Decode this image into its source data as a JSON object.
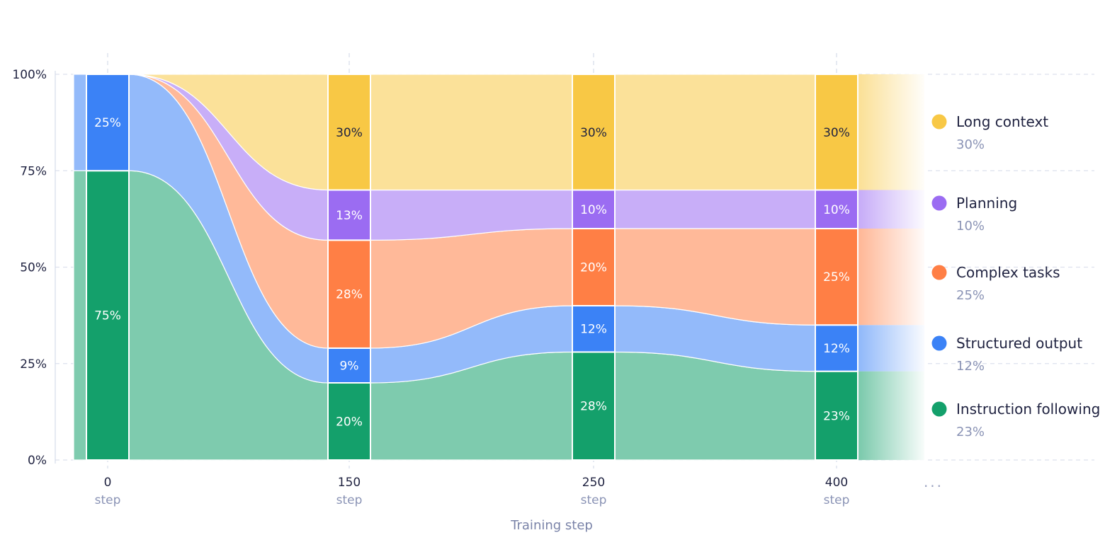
{
  "chart_data": {
    "type": "sankey",
    "xlabel": "Training step",
    "x": [
      0,
      150,
      250,
      400
    ],
    "x_sublabel": "step",
    "continuation": "...",
    "y_ticks": [
      "0%",
      "25%",
      "50%",
      "75%",
      "100%"
    ],
    "ylim": [
      0,
      100
    ],
    "grid": true,
    "legend_position": "right",
    "series": [
      {
        "name": "Instruction following",
        "color": "#14a06b",
        "values": [
          75,
          20,
          28,
          23
        ],
        "legend_value": "23%"
      },
      {
        "name": "Structured output",
        "color": "#3b82f6",
        "values": [
          25,
          9,
          12,
          12
        ],
        "legend_value": "12%"
      },
      {
        "name": "Complex tasks",
        "color": "#ff7f45",
        "values": [
          0,
          28,
          20,
          25
        ],
        "legend_value": "25%"
      },
      {
        "name": "Planning",
        "color": "#9b6cf2",
        "values": [
          0,
          13,
          10,
          10
        ],
        "legend_value": "10%"
      },
      {
        "name": "Long context",
        "color": "#f8c845",
        "values": [
          0,
          30,
          30,
          30
        ],
        "legend_value": "30%"
      }
    ],
    "labels": [
      [
        "75%",
        "20%",
        "28%",
        "23%"
      ],
      [
        "25%",
        "9%",
        "12%",
        "12%"
      ],
      [
        "",
        "28%",
        "20%",
        "25%"
      ],
      [
        "",
        "13%",
        "10%",
        "10%"
      ],
      [
        "",
        "30%",
        "30%",
        "30%"
      ]
    ]
  }
}
